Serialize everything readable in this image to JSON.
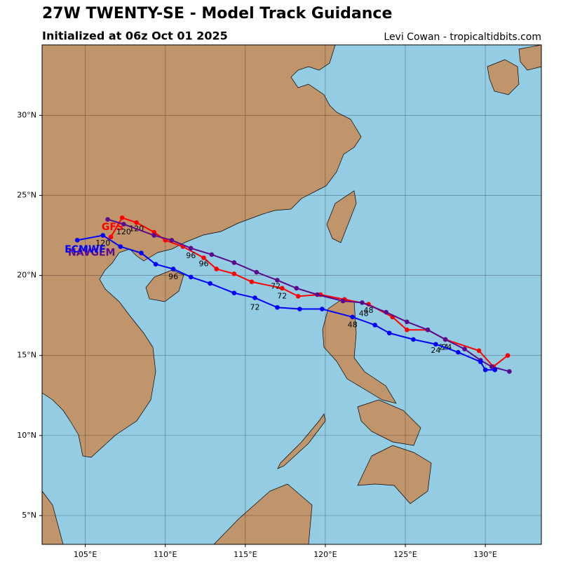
{
  "header": {
    "title": "27W TWENTY-SE - Model Track Guidance",
    "subtitle": "Initialized at 06z Oct 01 2025",
    "credit": "Levi Cowan - tropicaltidbits.com"
  },
  "map": {
    "lonlim": [
      102.3,
      133.5
    ],
    "latlim": [
      3.2,
      34.4
    ],
    "xticks": [
      {
        "value": 105,
        "label": "105°E"
      },
      {
        "value": 110,
        "label": "110°E"
      },
      {
        "value": 115,
        "label": "115°E"
      },
      {
        "value": 120,
        "label": "120°E"
      },
      {
        "value": 125,
        "label": "125°E"
      },
      {
        "value": 130,
        "label": "130°E"
      }
    ],
    "yticks": [
      {
        "value": 5,
        "label": "5°N"
      },
      {
        "value": 10,
        "label": "10°N"
      },
      {
        "value": 15,
        "label": "15°N"
      },
      {
        "value": 20,
        "label": "20°N"
      },
      {
        "value": 25,
        "label": "25°N"
      },
      {
        "value": 30,
        "label": "30°N"
      }
    ],
    "grid": true,
    "tracks": [
      {
        "name": "GFS",
        "color": "#ff0000",
        "name_lon": 106.7,
        "name_lat": 23.0,
        "lon": [
          131.4,
          130.5,
          129.6,
          127.5,
          126.4,
          125.1,
          124.2,
          122.7,
          121.2,
          119.7,
          118.3,
          117.3,
          115.4,
          114.3,
          113.2,
          112.4,
          111.1,
          110.0,
          109.3,
          108.2,
          107.3,
          106.6
        ],
        "lat": [
          15.0,
          14.3,
          15.3,
          16.0,
          16.6,
          16.6,
          17.4,
          18.2,
          18.5,
          18.8,
          18.7,
          19.2,
          19.6,
          20.1,
          20.4,
          21.1,
          21.8,
          22.2,
          22.7,
          23.3,
          23.6,
          22.4
        ],
        "hour_labels": [
          {
            "hour": 24,
            "lon": 127.6,
            "lat": 15.5
          },
          {
            "hour": 48,
            "lon": 122.7,
            "lat": 17.8
          },
          {
            "hour": 72,
            "lon": 117.3,
            "lat": 18.7
          },
          {
            "hour": 96,
            "lon": 112.4,
            "lat": 20.7
          },
          {
            "hour": 120,
            "lon": 108.2,
            "lat": 22.9
          }
        ]
      },
      {
        "name": "NAVGEM",
        "color": "#5a0a8c",
        "name_lon": 105.4,
        "name_lat": 21.4,
        "lon": [
          131.5,
          130.4,
          129.7,
          128.7,
          127.5,
          126.4,
          125.1,
          123.8,
          122.3,
          121.1,
          119.5,
          118.2,
          117.0,
          115.7,
          114.3,
          112.9,
          111.6,
          110.4,
          109.3,
          107.4,
          106.4
        ],
        "lat": [
          14.0,
          14.3,
          14.7,
          15.4,
          16.0,
          16.6,
          17.1,
          17.7,
          18.3,
          18.4,
          18.8,
          19.2,
          19.7,
          20.2,
          20.8,
          21.3,
          21.7,
          22.2,
          22.5,
          23.2,
          23.5
        ],
        "hour_labels": [
          {
            "hour": 24,
            "lon": 127.4,
            "lat": 15.5
          },
          {
            "hour": 48,
            "lon": 122.4,
            "lat": 17.6
          },
          {
            "hour": 72,
            "lon": 116.9,
            "lat": 19.3
          },
          {
            "hour": 96,
            "lon": 111.6,
            "lat": 21.2
          },
          {
            "hour": 120,
            "lon": 107.4,
            "lat": 22.7
          }
        ]
      },
      {
        "name": "ECMWF",
        "color": "#0000ff",
        "name_lon": 105.0,
        "name_lat": 21.6,
        "lon": [
          130.6,
          130.0,
          129.7,
          128.3,
          126.9,
          125.5,
          124.0,
          123.1,
          121.7,
          119.8,
          118.4,
          117.0,
          115.6,
          114.3,
          112.8,
          111.6,
          110.5,
          109.4,
          108.5,
          107.2,
          106.1,
          104.5
        ],
        "lat": [
          14.1,
          14.1,
          14.6,
          15.2,
          15.7,
          16.0,
          16.4,
          16.9,
          17.4,
          17.9,
          17.9,
          18.0,
          18.6,
          18.9,
          19.5,
          19.9,
          20.4,
          20.7,
          21.4,
          21.8,
          22.5,
          22.2
        ],
        "hour_labels": [
          {
            "hour": 24,
            "lon": 126.9,
            "lat": 15.3
          },
          {
            "hour": 48,
            "lon": 121.7,
            "lat": 16.9
          },
          {
            "hour": 72,
            "lon": 115.6,
            "lat": 18.0
          },
          {
            "hour": 96,
            "lon": 110.5,
            "lat": 19.9
          },
          {
            "hour": 120,
            "lon": 106.1,
            "lat": 22.0
          }
        ]
      }
    ]
  }
}
